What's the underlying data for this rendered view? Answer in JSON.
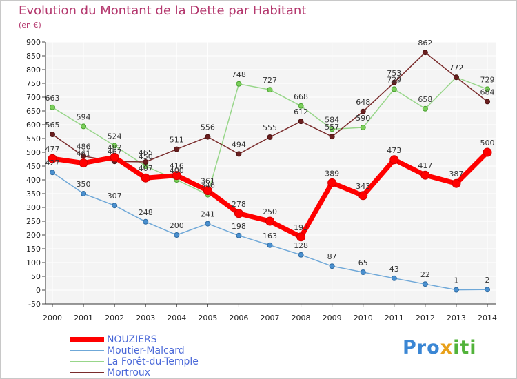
{
  "chart_data": {
    "type": "line",
    "title": "Evolution du Montant de la Dette par Habitant",
    "unit_label": "(en €)",
    "x": [
      2000,
      2001,
      2002,
      2003,
      2004,
      2005,
      2006,
      2007,
      2008,
      2009,
      2010,
      2011,
      2012,
      2013,
      2014
    ],
    "ylim": [
      -50,
      900
    ],
    "yticks": [
      -50,
      0,
      50,
      100,
      150,
      200,
      250,
      300,
      350,
      400,
      450,
      500,
      550,
      600,
      650,
      700,
      750,
      800,
      850,
      900
    ],
    "grid": true,
    "legend_position": "bottom-left",
    "series": [
      {
        "name": "NOUZIERS",
        "color": "#ff0000",
        "values": [
          477,
          461,
          482,
          407,
          416,
          361,
          278,
          250,
          193,
          389,
          343,
          473,
          417,
          387,
          500
        ]
      },
      {
        "name": "Moutier-Malcard",
        "color": "#6fa8d8",
        "values": [
          427,
          350,
          307,
          248,
          200,
          241,
          198,
          163,
          128,
          87,
          65,
          43,
          22,
          1,
          2
        ]
      },
      {
        "name": "La Forêt-du-Temple",
        "color": "#98d68a",
        "values": [
          663,
          594,
          524,
          450,
          400,
          346,
          748,
          727,
          668,
          584,
          590,
          729,
          658,
          772,
          729
        ]
      },
      {
        "name": "Mortroux",
        "color": "#7a2c2c",
        "values": [
          565,
          486,
          467,
          465,
          511,
          556,
          494,
          555,
          612,
          557,
          648,
          753,
          862,
          772,
          684
        ]
      }
    ]
  },
  "brand": {
    "text": "Proxiti",
    "part1": "Pro",
    "part2": "x",
    "part3": "iti"
  }
}
